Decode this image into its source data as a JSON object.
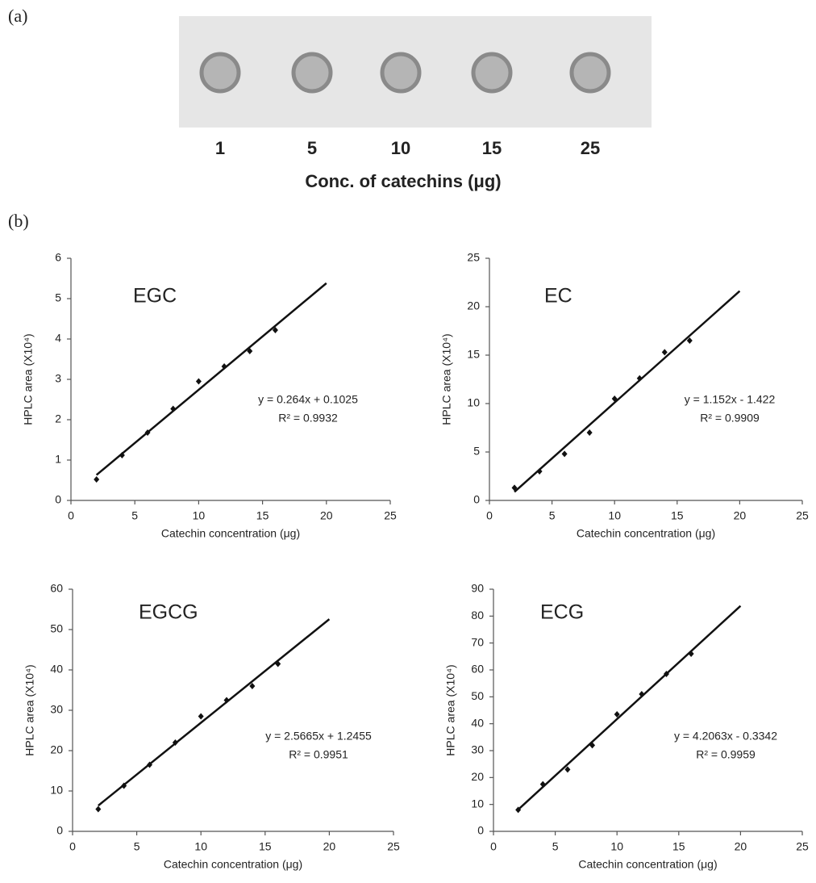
{
  "panel_a": {
    "label": "(a)",
    "categories": [
      "1",
      "5",
      "10",
      "15",
      "25"
    ],
    "xlabel": "Conc. of catechins (μg)"
  },
  "panel_b_label": "(b)",
  "chart_data": [
    {
      "type": "scatter",
      "title": "EGC",
      "xlabel": "Catechin concentration (μg)",
      "ylabel": "HPLC area (X10⁴)",
      "x": [
        2,
        4,
        6,
        8,
        10,
        12,
        14,
        16
      ],
      "series": [
        {
          "name": "EGC",
          "color": "#111111",
          "values": [
            0.52,
            1.12,
            1.68,
            2.27,
            2.95,
            3.32,
            3.7,
            4.22
          ]
        }
      ],
      "trendline": {
        "x": [
          2,
          20
        ],
        "slope": 0.264,
        "intercept": 0.1025,
        "equation": "y = 0.264x + 0.1025",
        "r2_label": "R² = 0.9932"
      },
      "xlim": [
        0,
        25
      ],
      "xticks": [
        0,
        5,
        10,
        15,
        20,
        25
      ],
      "ylim": [
        0,
        6
      ],
      "yticks": [
        0,
        1,
        2,
        3,
        4,
        5,
        6
      ]
    },
    {
      "type": "scatter",
      "title": "EC",
      "xlabel": "Catechin concentration (μg)",
      "ylabel": "HPLC area (X10⁴)",
      "x": [
        2,
        4,
        6,
        8,
        10,
        12,
        14,
        16
      ],
      "series": [
        {
          "name": "EC",
          "color": "#111111",
          "values": [
            1.3,
            3.0,
            4.8,
            7.0,
            10.5,
            12.6,
            15.3,
            16.5
          ]
        }
      ],
      "trendline": {
        "x": [
          2,
          20
        ],
        "slope": 1.152,
        "intercept": -1.422,
        "equation": "y = 1.152x - 1.422",
        "r2_label": "R² = 0.9909"
      },
      "xlim": [
        0,
        25
      ],
      "xticks": [
        0,
        5,
        10,
        15,
        20,
        25
      ],
      "ylim": [
        0,
        25
      ],
      "yticks": [
        0,
        5,
        10,
        15,
        20,
        25
      ]
    },
    {
      "type": "scatter",
      "title": "EGCG",
      "xlabel": "Catechin concentration (μg)",
      "ylabel": "HPLC area (X10⁴)",
      "x": [
        2,
        4,
        6,
        8,
        10,
        12,
        14,
        16
      ],
      "series": [
        {
          "name": "EGCG",
          "color": "#111111",
          "values": [
            5.5,
            11.3,
            16.5,
            22,
            28.5,
            32.5,
            36,
            41.5
          ]
        }
      ],
      "trendline": {
        "x": [
          2,
          20
        ],
        "slope": 2.5665,
        "intercept": 1.2455,
        "equation": "y = 2.5665x + 1.2455",
        "r2_label": "R² = 0.9951"
      },
      "xlim": [
        0,
        25
      ],
      "xticks": [
        0,
        5,
        10,
        15,
        20,
        25
      ],
      "ylim": [
        0,
        60
      ],
      "yticks": [
        0,
        10,
        20,
        30,
        40,
        50,
        60
      ]
    },
    {
      "type": "scatter",
      "title": "ECG",
      "xlabel": "Catechin concentration (μg)",
      "ylabel": "HPLC area (X10⁴)",
      "x": [
        2,
        4,
        6,
        8,
        10,
        12,
        14,
        16
      ],
      "series": [
        {
          "name": "ECG",
          "color": "#111111",
          "values": [
            8,
            17.5,
            23,
            32,
            43.5,
            51,
            58.5,
            66
          ]
        }
      ],
      "trendline": {
        "x": [
          2,
          20
        ],
        "slope": 4.2063,
        "intercept": -0.3342,
        "equation": "y = 4.2063x - 0.3342",
        "r2_label": "R² = 0.9959"
      },
      "xlim": [
        0,
        25
      ],
      "xticks": [
        0,
        5,
        10,
        15,
        20,
        25
      ],
      "ylim": [
        0,
        90
      ],
      "yticks": [
        0,
        10,
        20,
        30,
        40,
        50,
        60,
        70,
        80,
        90
      ]
    }
  ]
}
